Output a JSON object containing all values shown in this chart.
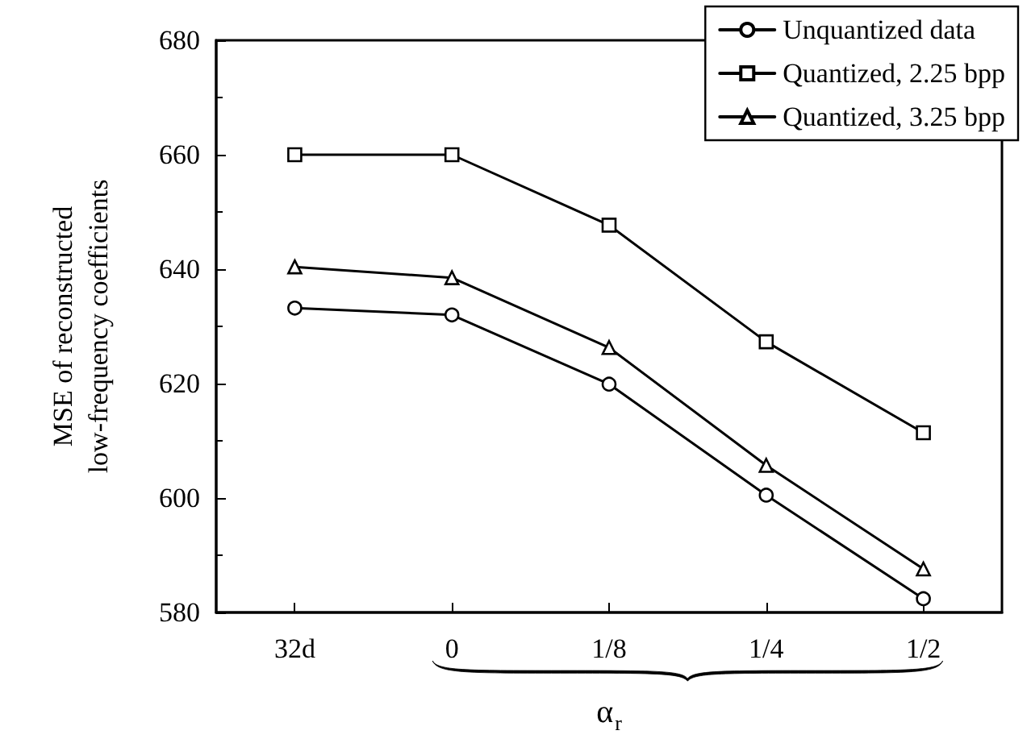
{
  "chart_data": {
    "type": "line",
    "xlabel": "α$_{r}$",
    "ylabel": "MSE of reconstructed\nlow-frequency coefficients",
    "categories": [
      "32d",
      "0",
      "1/8",
      "1/4",
      "1/2"
    ],
    "series": [
      {
        "name": "Unquantized data",
        "color": "#000000",
        "marker": "circle",
        "values": [
          633.2,
          632,
          619.9,
          600.5,
          582.4
        ]
      },
      {
        "name": "Quantized, 2.25 bpp",
        "color": "#000000",
        "marker": "square",
        "values": [
          660,
          660,
          647.7,
          627.3,
          611.4
        ]
      },
      {
        "name": "Quantized, 3.25 bpp",
        "color": "#000000",
        "marker": "triangle",
        "values": [
          640.4,
          638.5,
          626.3,
          605.7,
          587.6
        ]
      }
    ],
    "ylim": [
      580,
      680
    ],
    "yticks": [
      580,
      600,
      620,
      640,
      660,
      680
    ],
    "grid": false,
    "legend": "top right",
    "line_style": "solid"
  }
}
